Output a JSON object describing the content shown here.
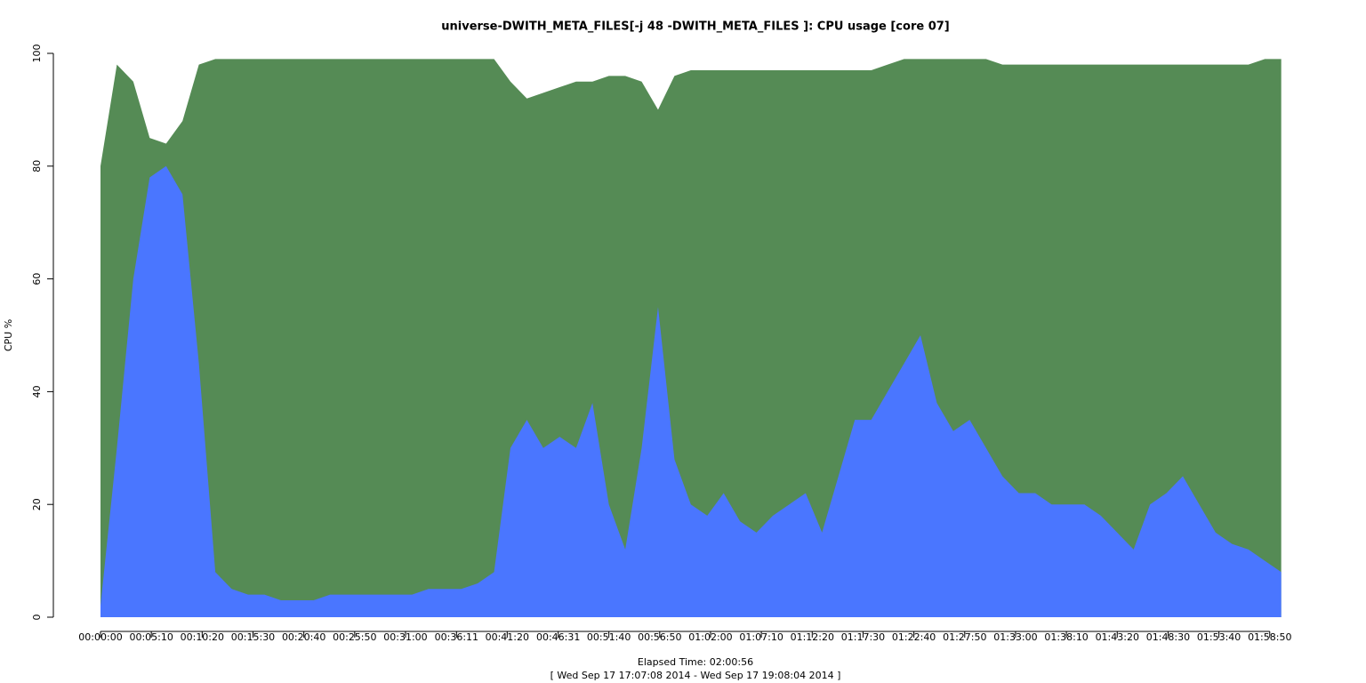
{
  "chart_data": {
    "type": "stacked-area",
    "title": "universe-DWITH_META_FILES[-j 48 -DWITH_META_FILES ]: CPU usage [core 07]",
    "xlabel": "Elapsed Time: 02:00:56",
    "subtitle": "[ Wed Sep 17 17:07:08 2014 - Wed Sep 17 19:08:04 2014 ]",
    "ylabel": "CPU %",
    "x": [
      0,
      100,
      200,
      300,
      400,
      500,
      600,
      700,
      800,
      900,
      1000,
      1100,
      1200,
      1300,
      1400,
      1500,
      1600,
      1700,
      1800,
      1900,
      2000,
      2100,
      2200,
      2300,
      2400,
      2500,
      2600,
      2700,
      2800,
      2900,
      3000,
      3100,
      3200,
      3300,
      3400,
      3500,
      3600,
      3700,
      3800,
      3900,
      4000,
      4100,
      4200,
      4300,
      4400,
      4500,
      4600,
      4700,
      4800,
      4900,
      5000,
      5100,
      5200,
      5300,
      5400,
      5500,
      5600,
      5700,
      5800,
      5900,
      6000,
      6100,
      6200,
      6300,
      6400,
      6500,
      6600,
      6700,
      6800,
      6900,
      7000,
      7100,
      7200
    ],
    "series": [
      {
        "color": "#4a76ff",
        "values": [
          2,
          30,
          60,
          78,
          80,
          75,
          45,
          8,
          5,
          4,
          4,
          3,
          3,
          3,
          4,
          4,
          4,
          4,
          4,
          4,
          5,
          5,
          5,
          6,
          8,
          30,
          35,
          30,
          32,
          30,
          38,
          20,
          12,
          30,
          55,
          28,
          20,
          18,
          22,
          17,
          15,
          18,
          20,
          22,
          15,
          25,
          35,
          35,
          40,
          45,
          50,
          38,
          33,
          35,
          30,
          25,
          22,
          22,
          20,
          20,
          20,
          18,
          15,
          12,
          20,
          22,
          25,
          20,
          15,
          13,
          12,
          10,
          8
        ]
      },
      {
        "color": "#558b55",
        "values": [
          78,
          68,
          35,
          7,
          4,
          13,
          53,
          91,
          94,
          95,
          95,
          96,
          96,
          96,
          95,
          95,
          95,
          95,
          95,
          95,
          94,
          94,
          94,
          93,
          91,
          65,
          57,
          63,
          62,
          65,
          57,
          76,
          84,
          65,
          35,
          68,
          77,
          79,
          75,
          80,
          82,
          79,
          77,
          75,
          82,
          72,
          62,
          62,
          58,
          54,
          49,
          61,
          66,
          64,
          69,
          73,
          76,
          76,
          78,
          78,
          78,
          80,
          83,
          86,
          78,
          76,
          73,
          78,
          83,
          85,
          86,
          89,
          91
        ]
      }
    ],
    "xlim": [
      0,
      7256
    ],
    "xticks": [
      {
        "value": 0,
        "label": "00:00:00"
      },
      {
        "value": 310,
        "label": "00:05:10"
      },
      {
        "value": 620,
        "label": "00:10:20"
      },
      {
        "value": 930,
        "label": "00:15:30"
      },
      {
        "value": 1240,
        "label": "00:20:40"
      },
      {
        "value": 1550,
        "label": "00:25:50"
      },
      {
        "value": 1860,
        "label": "00:31:00"
      },
      {
        "value": 2171,
        "label": "00:36:11"
      },
      {
        "value": 2480,
        "label": "00:41:20"
      },
      {
        "value": 2791,
        "label": "00:46:31"
      },
      {
        "value": 3100,
        "label": "00:51:40"
      },
      {
        "value": 3410,
        "label": "00:56:50"
      },
      {
        "value": 3720,
        "label": "01:02:00"
      },
      {
        "value": 4030,
        "label": "01:07:10"
      },
      {
        "value": 4340,
        "label": "01:12:20"
      },
      {
        "value": 4650,
        "label": "01:17:30"
      },
      {
        "value": 4960,
        "label": "01:22:40"
      },
      {
        "value": 5270,
        "label": "01:27:50"
      },
      {
        "value": 5580,
        "label": "01:33:00"
      },
      {
        "value": 5890,
        "label": "01:38:10"
      },
      {
        "value": 6200,
        "label": "01:43:20"
      },
      {
        "value": 6510,
        "label": "01:48:30"
      },
      {
        "value": 6820,
        "label": "01:53:40"
      },
      {
        "value": 7130,
        "label": "01:58:50"
      }
    ],
    "ylim": [
      0,
      100
    ],
    "yticks": [
      0,
      20,
      40,
      60,
      80,
      100
    ]
  }
}
